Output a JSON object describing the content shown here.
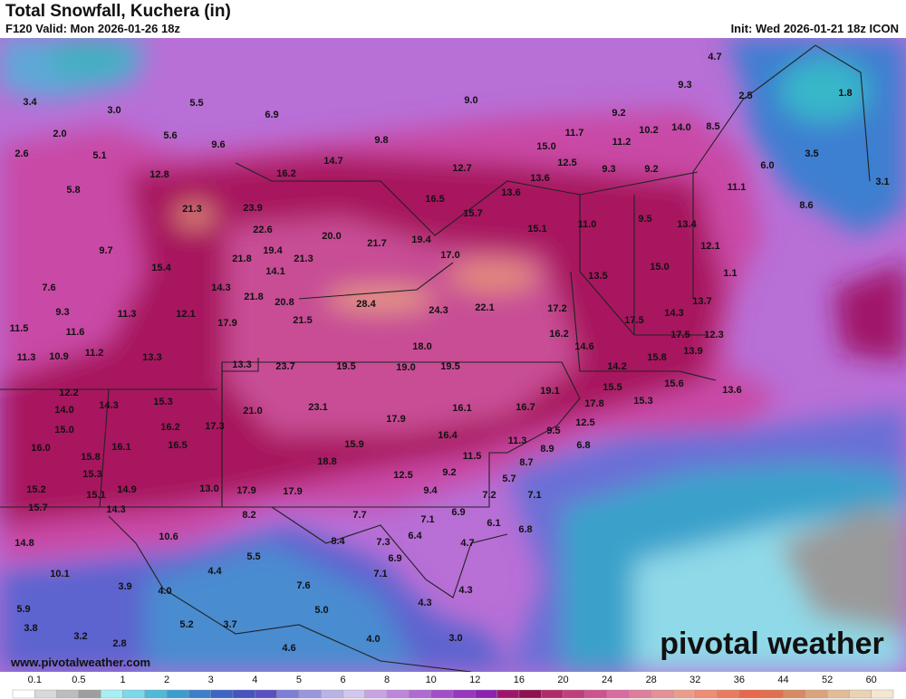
{
  "header": {
    "title": "Total Snowfall, Kuchera (in)",
    "valid": "F120 Valid: Mon 2026-01-26 18z",
    "init": "Init: Wed 2026-01-21 18z ICON"
  },
  "map": {
    "labels": [
      "3.4",
      "3.0",
      "5.5",
      "6.9",
      "9.0",
      "4.7",
      "9.3",
      "2.5",
      "1.8",
      "2.0",
      "5.6",
      "9.6",
      "9.8",
      "11.7",
      "9.2",
      "10.2",
      "14.0",
      "8.5",
      "11.2",
      "2.6",
      "5.1",
      "14.7",
      "15.0",
      "12.5",
      "9.3",
      "9.2",
      "6.0",
      "3.5",
      "12.8",
      "16.2",
      "12.7",
      "13.6",
      "3.1",
      "11.1",
      "5.8",
      "16.5",
      "13.6",
      "8.6",
      "21.3",
      "23.9",
      "15.7",
      "11.0",
      "9.5",
      "13.4",
      "9.7",
      "22.6",
      "20.0",
      "19.4",
      "15.1",
      "21.7",
      "12.1",
      "19.4",
      "21.8",
      "21.3",
      "17.0",
      "15.0",
      "15.4",
      "14.1",
      "13.5",
      "1.1",
      "7.6",
      "14.3",
      "21.8",
      "20.8",
      "28.4",
      "13.7",
      "9.3",
      "11.3",
      "12.1",
      "24.3",
      "22.1",
      "17.2",
      "17.5",
      "14.3",
      "11.5",
      "11.6",
      "17.9",
      "21.5",
      "16.2",
      "17.5",
      "12.3",
      "11.3",
      "10.9",
      "11.2",
      "13.3",
      "18.0",
      "14.6",
      "15.8",
      "13.9",
      "13.3",
      "23.7",
      "19.5",
      "19.0",
      "19.5",
      "14.2",
      "12.2",
      "15.3",
      "19.1",
      "15.5",
      "15.6",
      "13.6",
      "14.3",
      "21.0",
      "23.1",
      "16.1",
      "16.7",
      "17.8",
      "15.3",
      "14.0",
      "16.2",
      "17.3",
      "17.9",
      "9.5",
      "12.5",
      "15.0",
      "16.4",
      "11.3",
      "6.8",
      "16.5",
      "16.0",
      "16.1",
      "15.9",
      "8.9",
      "15.8",
      "18.8",
      "8.7",
      "11.5",
      "15.3",
      "12.5",
      "9.2",
      "5.7",
      "15.2",
      "15.1",
      "14.9",
      "13.0",
      "17.9",
      "17.9",
      "9.4",
      "7.2",
      "7.1",
      "15.7",
      "14.3",
      "8.2",
      "7.7",
      "7.1",
      "6.9",
      "6.1",
      "6.8",
      "10.6",
      "8.4",
      "6.4",
      "4.7",
      "7.3",
      "14.8",
      "5.5",
      "6.9",
      "10.1",
      "4.4",
      "7.1",
      "3.9",
      "4.0",
      "7.6",
      "4.3",
      "5.9",
      "5.0",
      "4.3",
      "3.8",
      "5.2",
      "3.7",
      "3.2",
      "4.0",
      "2.8",
      "4.6",
      "3.0"
    ],
    "watermark": "pivotal weather",
    "url": "www.pivotalweather.com"
  },
  "legend": {
    "labels": [
      "0.1",
      "0.5",
      "1",
      "2",
      "3",
      "4",
      "5",
      "6",
      "8",
      "10",
      "12",
      "16",
      "20",
      "24",
      "28",
      "32",
      "36",
      "44",
      "52",
      "60"
    ]
  }
}
